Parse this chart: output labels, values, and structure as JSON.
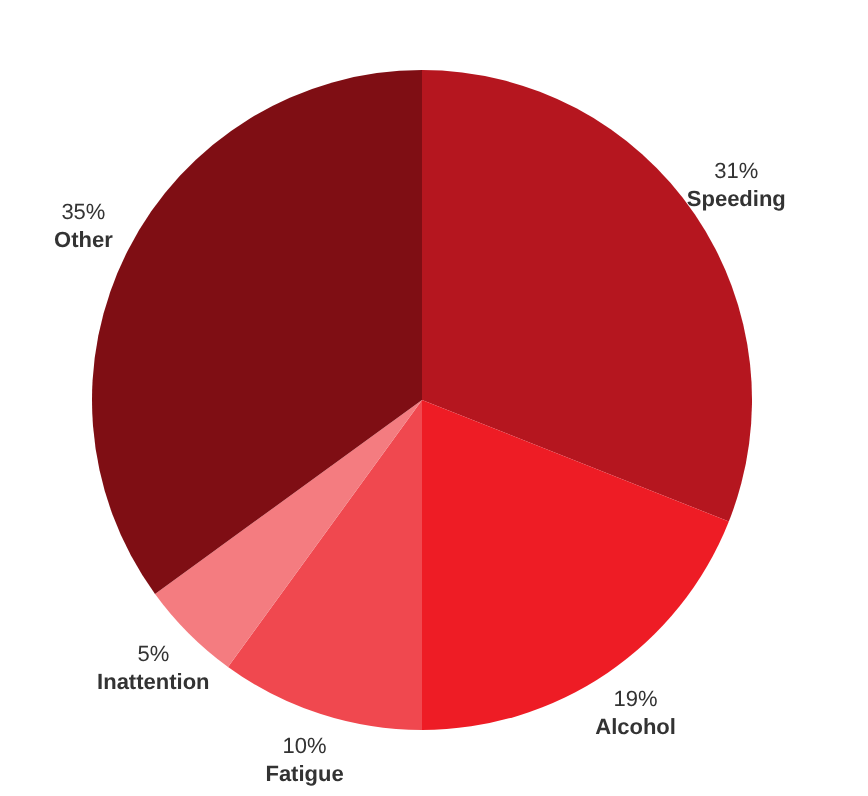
{
  "chart_data": {
    "type": "pie",
    "categories": [
      "Speeding",
      "Alcohol",
      "Fatigue",
      "Inattention",
      "Other"
    ],
    "values": [
      31,
      19,
      10,
      5,
      35
    ],
    "value_labels": [
      "31%",
      "19%",
      "10%",
      "5%",
      "35%"
    ],
    "colors": [
      "#b5161f",
      "#ee1c25",
      "#f0484f",
      "#f47c80",
      "#7f0e14"
    ]
  }
}
